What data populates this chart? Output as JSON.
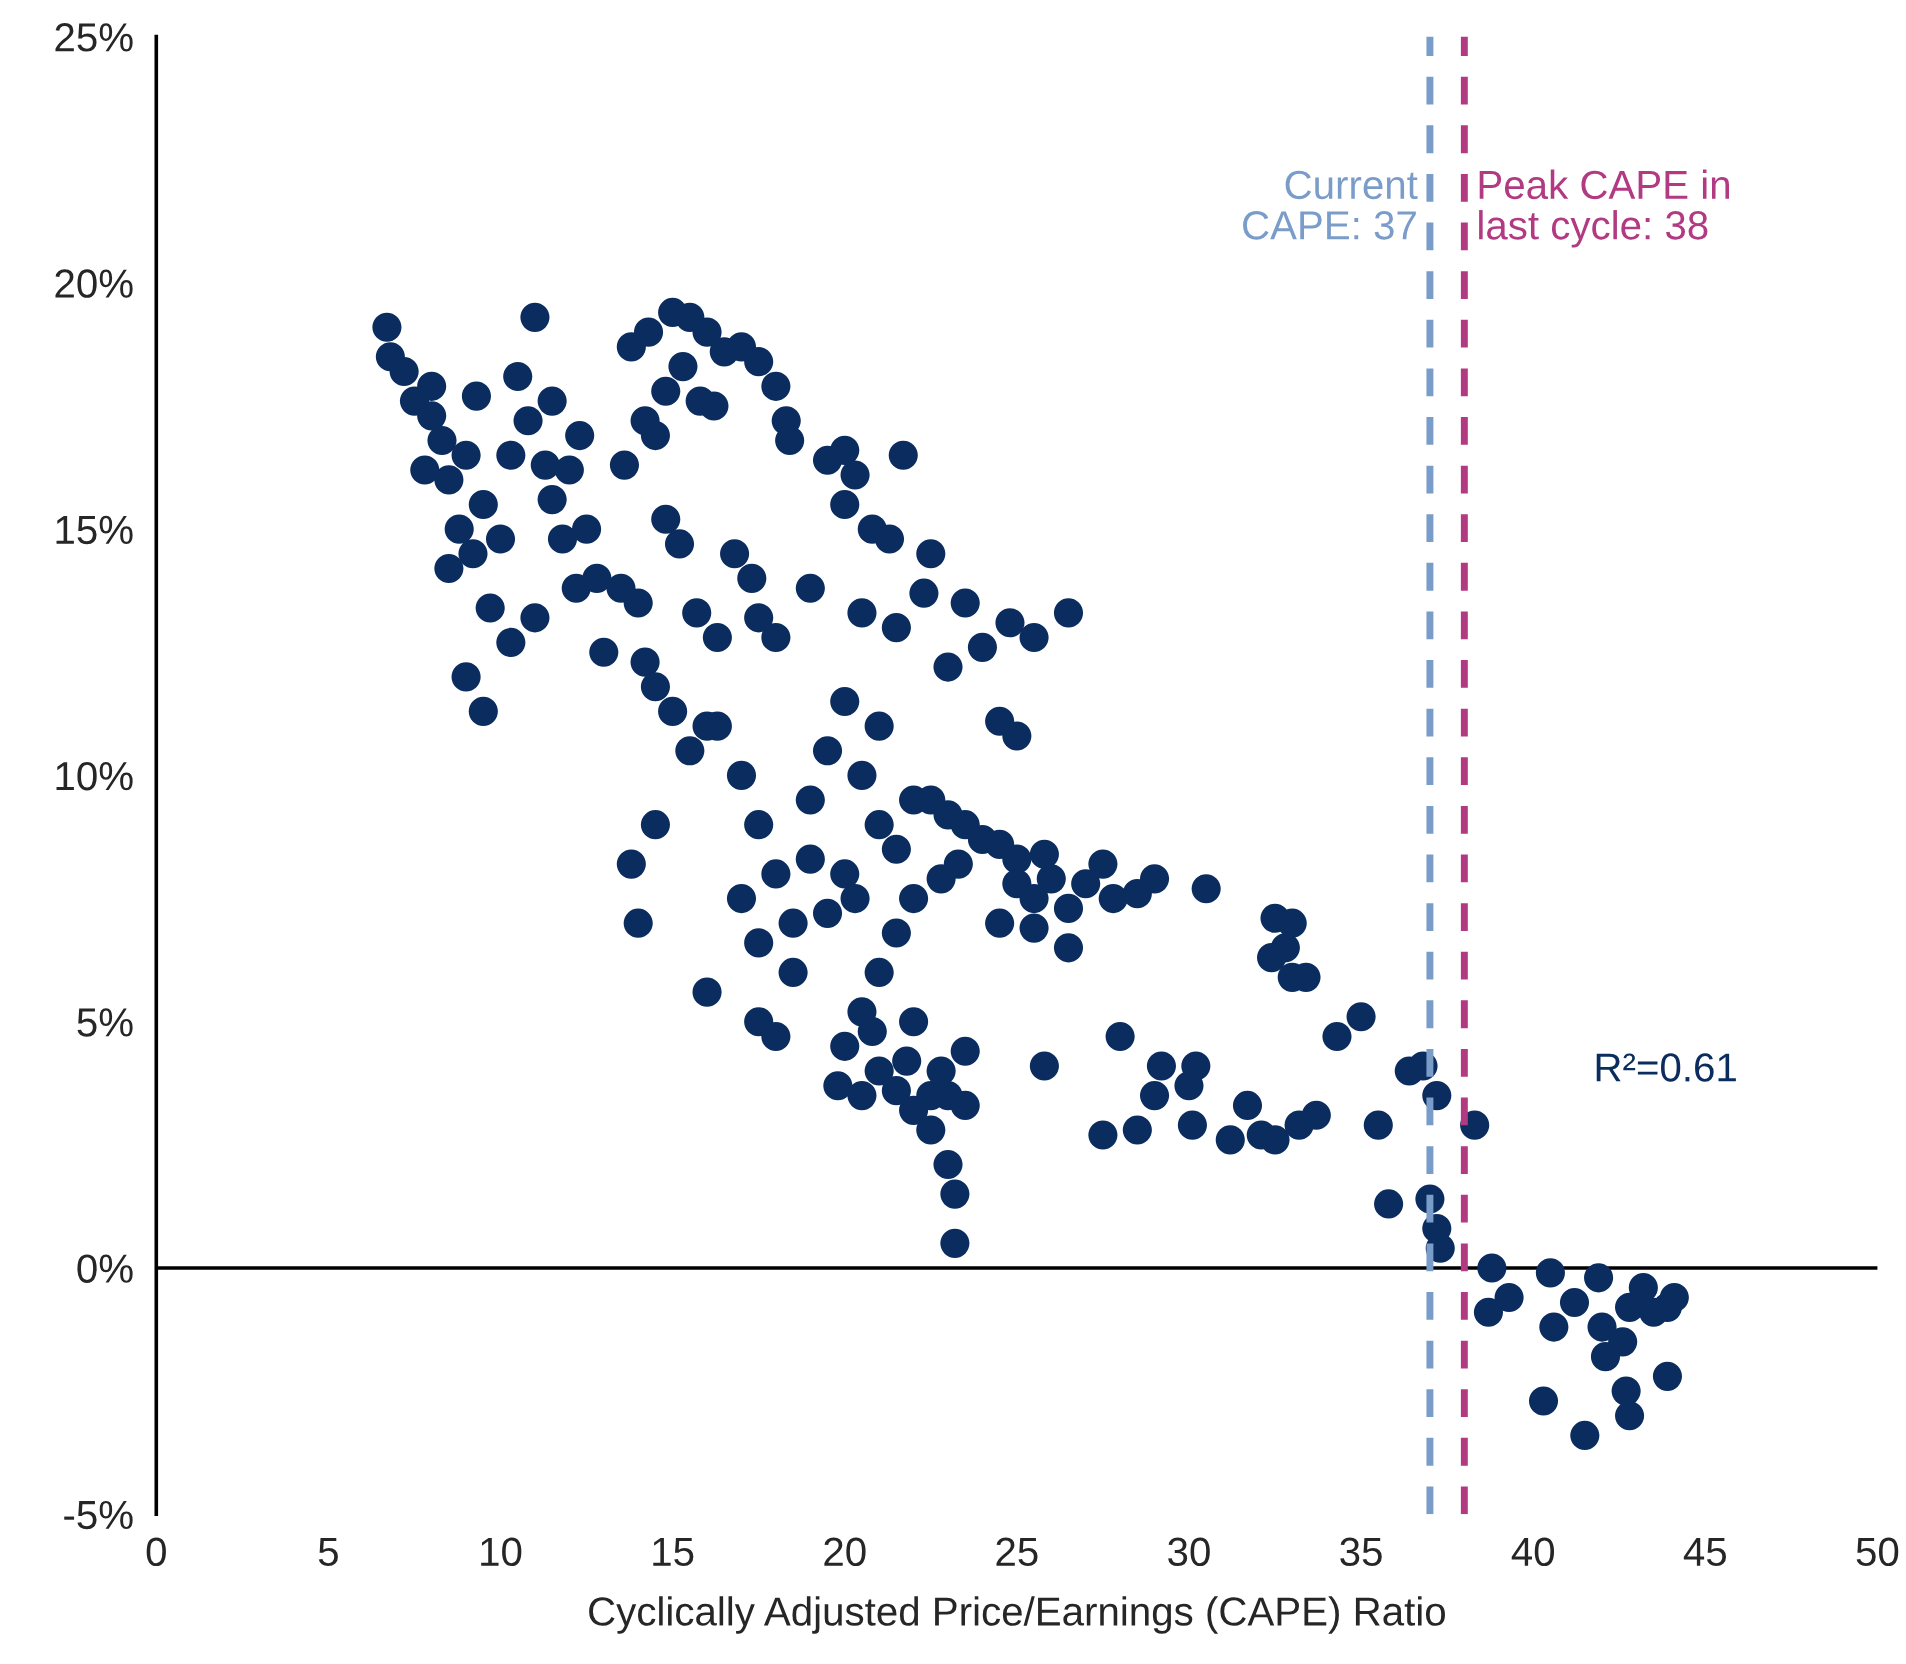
{
  "chart_data": {
    "type": "scatter",
    "xlabel": "Cyclically Adjusted Price/Earnings (CAPE) Ratio",
    "xlim": [
      0,
      50
    ],
    "xticks": [
      0,
      5,
      10,
      15,
      20,
      25,
      30,
      35,
      40,
      45,
      50
    ],
    "ylim": [
      -5,
      25
    ],
    "yticks": [
      {
        "value": -5,
        "label": "-5%"
      },
      {
        "value": 0,
        "label": "0%"
      },
      {
        "value": 5,
        "label": "5%"
      },
      {
        "value": 10,
        "label": "10%"
      },
      {
        "value": 15,
        "label": "15%"
      },
      {
        "value": 20,
        "label": "20%"
      },
      {
        "value": 25,
        "label": "25%"
      }
    ],
    "grid": false,
    "legend": false,
    "marker": "circle",
    "annotations": [
      "R²=0.61"
    ],
    "ref_lines": [
      {
        "axis": "y",
        "value": 0,
        "color": "#000000",
        "line_style": "solid"
      },
      {
        "axis": "x",
        "value": 37,
        "label": "Current\nCAPE: 37",
        "color": "#7a9cc9",
        "line_style": "dashed"
      },
      {
        "axis": "x",
        "value": 38,
        "label": "Peak CAPE in\nlast cycle: 38",
        "color": "#b23a82",
        "line_style": "dashed"
      }
    ],
    "series": [
      {
        "color": "#0b2c5e",
        "x": [
          6.7,
          6.8,
          7.2,
          7.5,
          8,
          8.3,
          8.5,
          9,
          9.3,
          9.5,
          8.8,
          9.2,
          10,
          9.7,
          10.5,
          10.8,
          11,
          11.3,
          11.5,
          11.8,
          12,
          12.5,
          12.2,
          11,
          10.3,
          8.5,
          9,
          9.5,
          12.8,
          13.5,
          13,
          11.5,
          12.3,
          10.3,
          8.0,
          7.8,
          13.8,
          14.3,
          15,
          15.5,
          16,
          16.5,
          17,
          17.5,
          18,
          18.3,
          18.4,
          15.3,
          14.8,
          16.2,
          15.8,
          14.2,
          13.6,
          14.5,
          14.8,
          14,
          15.2,
          15.7,
          16.8,
          17.3,
          17.5,
          18,
          14.2,
          14.5,
          15,
          16.3,
          14.5,
          13.8,
          14,
          15.5,
          16.3,
          19.5,
          20,
          20.3,
          21.7,
          20,
          20.8,
          21.3,
          22.5,
          22.3,
          23.5,
          24,
          23,
          19,
          20.5,
          21.5,
          24.8,
          25.5,
          26.5,
          24.5,
          25,
          16,
          17,
          17.5,
          18,
          17,
          18.5,
          19,
          19.5,
          20,
          20.5,
          21,
          21.5,
          20,
          19.5,
          18.5,
          17.5,
          18,
          16,
          17.5,
          19,
          21,
          22,
          22.5,
          23,
          23.5,
          24,
          24.5,
          25,
          22,
          22.8,
          23.3,
          21.5,
          21,
          20.5,
          20.3,
          22,
          20,
          25,
          25.5,
          26,
          26.5,
          27,
          25.5,
          26.5,
          24.5,
          27.5,
          27.8,
          28.5,
          29,
          30.5,
          25.8,
          19.8,
          20.5,
          21,
          21.5,
          22,
          22.5,
          23,
          23.5,
          22.5,
          23,
          23.2,
          23.2,
          23.5,
          22.8,
          21.8,
          20.8,
          25.8,
          27.5,
          28,
          28.5,
          29,
          29.2,
          30,
          30.2,
          30.1,
          31.2,
          31.7,
          32.1,
          32.5,
          33.2,
          33.7,
          34.3,
          35,
          35.5,
          32.5,
          32.8,
          33,
          33,
          32.4,
          33.4,
          35.8,
          36.4,
          36.8,
          37.2,
          37,
          37.2,
          37.3,
          38.3,
          38.8,
          38.7,
          39.3,
          40.5,
          40.3,
          40.6,
          41.2,
          41.5,
          41.9,
          42,
          42.1,
          42.6,
          42.7,
          42.8,
          42.8,
          43.2,
          43.5,
          43.9,
          43.9,
          44.1
        ],
        "values": [
          19.1,
          18.5,
          18.2,
          17.6,
          17.3,
          16.8,
          16,
          16.5,
          17.7,
          15.5,
          15,
          14.5,
          14.8,
          13.4,
          18.1,
          17.2,
          19.3,
          16.3,
          15.6,
          14.8,
          16.2,
          15,
          13.8,
          13.2,
          12.7,
          14.2,
          12,
          11.3,
          14,
          13.8,
          12.5,
          17.6,
          16.9,
          16.5,
          17.9,
          16.2,
          18.7,
          19,
          19.4,
          19.3,
          19,
          18.6,
          18.7,
          18.4,
          17.9,
          17.2,
          16.8,
          18.3,
          17.8,
          17.5,
          17.6,
          17.2,
          16.3,
          16.9,
          15.2,
          13.5,
          14.7,
          13.3,
          14.5,
          14,
          13.2,
          12.8,
          12.3,
          11.8,
          11.3,
          12.8,
          9,
          8.2,
          7,
          10.5,
          11,
          16.4,
          16.6,
          16.1,
          16.5,
          15.5,
          15,
          14.8,
          14.5,
          13.7,
          13.5,
          12.6,
          12.2,
          13.8,
          13.3,
          13.0,
          13.1,
          12.8,
          13.3,
          11.1,
          10.8,
          11,
          10,
          9,
          8,
          7.5,
          7,
          9.5,
          10.5,
          11.5,
          10,
          9,
          8.5,
          8,
          7.2,
          6,
          5,
          4.7,
          5.6,
          6.6,
          8.3,
          11,
          9.5,
          9.5,
          9.2,
          9,
          8.7,
          8.6,
          8.3,
          7.5,
          7.9,
          8.2,
          6.8,
          6,
          5.2,
          7.5,
          5,
          4.5,
          7.8,
          7.5,
          7.9,
          7.3,
          7.8,
          6.9,
          6.5,
          7,
          8.2,
          7.5,
          7.6,
          7.9,
          7.7,
          8.4,
          3.7,
          3.5,
          4,
          3.6,
          3.2,
          3.5,
          3.5,
          3.3,
          2.8,
          2.1,
          1.5,
          0.5,
          4.4,
          4,
          4.2,
          4.8,
          4.1,
          2.7,
          4.7,
          2.8,
          3.5,
          4.1,
          3.7,
          4.1,
          2.9,
          2.6,
          3.3,
          2.7,
          2.6,
          2.9,
          3.1,
          4.7,
          5.1,
          2.9,
          7.1,
          6.5,
          5.9,
          7.0,
          6.3,
          5.9,
          1.3,
          4.0,
          4.1,
          3.5,
          1.4,
          0.8,
          0.4,
          2.9,
          0,
          -0.9,
          -0.6,
          -0.1,
          -2.7,
          -1.2,
          -0.7,
          -3.4,
          -0.2,
          -1.2,
          -1.8,
          -1.5,
          -2.5,
          -3,
          -0.8,
          -0.4,
          -0.9,
          -2.2,
          -0.8,
          -0.6
        ]
      }
    ]
  }
}
